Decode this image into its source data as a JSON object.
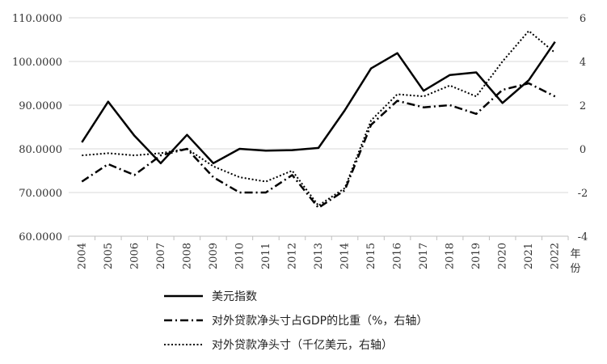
{
  "chart_data": {
    "type": "line",
    "title": "",
    "xlabel": "年份",
    "x": [
      "2004",
      "2005",
      "2006",
      "2007",
      "2008",
      "2009",
      "2010",
      "2011",
      "2012",
      "2013",
      "2014",
      "2015",
      "2016",
      "2017",
      "2018",
      "2019",
      "2020",
      "2021",
      "2022"
    ],
    "y_left": {
      "ylim": [
        60,
        110
      ],
      "ticks": [
        "60.0000",
        "70.0000",
        "80.0000",
        "90.0000",
        "100.0000",
        "110.0000"
      ]
    },
    "y_right": {
      "ylim": [
        -4,
        6
      ],
      "ticks": [
        "-4",
        "-2",
        "0",
        "2",
        "4",
        "6"
      ]
    },
    "grid": "horizontal",
    "legend_position": "bottom",
    "series": [
      {
        "name": "美元指数",
        "axis": "left",
        "style": "solid",
        "values": [
          81.5,
          90.8,
          83.0,
          76.7,
          83.2,
          76.7,
          80.0,
          79.6,
          79.7,
          80.2,
          88.8,
          98.4,
          101.9,
          93.3,
          96.9,
          97.5,
          90.5,
          95.7,
          104.5
        ]
      },
      {
        "name": "对外贷款净头寸占GDP的比重（%，右轴）",
        "axis": "right",
        "style": "dashdot",
        "values": [
          -1.5,
          -0.7,
          -1.2,
          -0.3,
          0.0,
          -1.3,
          -2.0,
          -2.0,
          -1.2,
          -2.7,
          -1.9,
          1.1,
          2.2,
          1.9,
          2.0,
          1.6,
          2.7,
          3.0,
          2.4
        ]
      },
      {
        "name": "对外贷款净头寸（千亿美元，右轴）",
        "axis": "right",
        "style": "dotted",
        "values": [
          -0.3,
          -0.2,
          -0.3,
          -0.2,
          0.0,
          -0.8,
          -1.3,
          -1.5,
          -1.0,
          -2.6,
          -1.8,
          1.3,
          2.5,
          2.4,
          2.9,
          2.4,
          4.0,
          5.4,
          4.4
        ]
      }
    ]
  }
}
